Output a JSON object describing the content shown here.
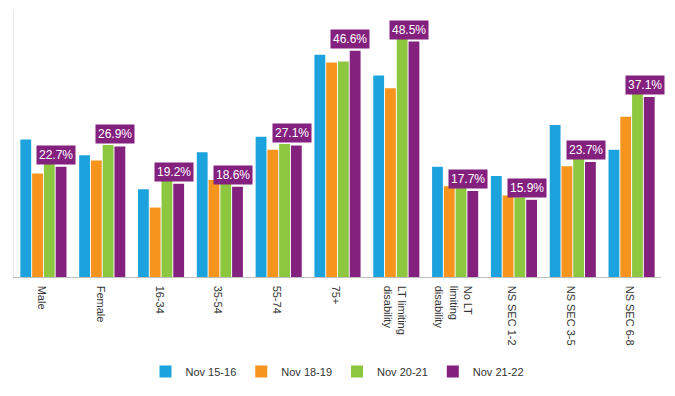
{
  "chart_data": {
    "type": "bar",
    "categories": [
      "Male",
      "Female",
      "16-34",
      "35-54",
      "55-74",
      "75+",
      "LT limiting disability",
      "No LT limiting disability",
      "NS SEC 1-2",
      "NS SEC 3-5",
      "NS SEC 6-8"
    ],
    "series": [
      {
        "name": "Nov 15-16",
        "color": "#1ca3de",
        "values": [
          28.3,
          25.1,
          18.1,
          25.7,
          28.9,
          45.8,
          41.5,
          22.7,
          20.8,
          31.3,
          26.2
        ]
      },
      {
        "name": "Nov 18-19",
        "color": "#f7941d",
        "values": [
          21.3,
          24.0,
          14.3,
          20.0,
          26.2,
          44.2,
          38.9,
          18.7,
          16.8,
          22.8,
          33.0
        ]
      },
      {
        "name": "Nov 20-21",
        "color": "#8dc63f",
        "values": [
          23.4,
          27.2,
          20.2,
          19.8,
          27.4,
          44.4,
          50.2,
          18.9,
          16.4,
          24.5,
          38.9
        ]
      },
      {
        "name": "Nov 21-22",
        "color": "#84217f",
        "data_labels": true,
        "values": [
          22.7,
          26.9,
          19.2,
          18.6,
          27.1,
          46.6,
          48.5,
          17.7,
          15.9,
          23.7,
          37.1
        ],
        "value_labels": [
          "22.7%",
          "26.9%",
          "19.2%",
          "18.6%",
          "27.1%",
          "46.6%",
          "48.5%",
          "17.7%",
          "15.9%",
          "23.7%",
          "37.1%"
        ]
      }
    ],
    "ylim": [
      0,
      55
    ],
    "tick_labels": "x",
    "grid": false,
    "legend": "bottom"
  }
}
